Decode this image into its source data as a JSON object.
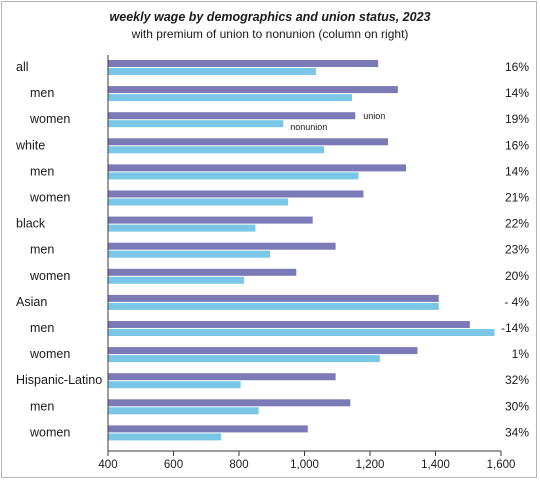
{
  "chart_data": {
    "type": "bar",
    "orientation": "horizontal",
    "title": "weekly wage by demographics and union status, 2023",
    "subtitle": "with premium of union to nonunion (column on right)",
    "categories": [
      "all",
      "men",
      "women",
      "white",
      "men",
      "women",
      "black",
      "men",
      "women",
      "Asian",
      "men",
      "women",
      "Hispanic-Latino",
      "men",
      "women"
    ],
    "category_indent": [
      false,
      true,
      true,
      false,
      true,
      true,
      false,
      true,
      true,
      false,
      true,
      true,
      false,
      true,
      true
    ],
    "series": [
      {
        "name": "union",
        "color": "#7c79b7",
        "values": [
          1225,
          1285,
          1155,
          1255,
          1310,
          1180,
          1025,
          1095,
          975,
          1410,
          1505,
          1345,
          1095,
          1140,
          1010
        ]
      },
      {
        "name": "nonunion",
        "color": "#79c6e6",
        "values": [
          1035,
          1145,
          935,
          1060,
          1165,
          950,
          850,
          895,
          815,
          1410,
          1580,
          1230,
          805,
          860,
          745
        ]
      }
    ],
    "premium": [
      "16%",
      "14%",
      "19%",
      "16%",
      "14%",
      "21%",
      "22%",
      "23%",
      "20%",
      "- 4%",
      "-14%",
      "1%",
      "32%",
      "30%",
      "34%"
    ],
    "series_annotations": {
      "union": "union",
      "nonunion": "nonunion",
      "annotated_category": 2
    },
    "xlim": [
      400,
      1600
    ],
    "xticks": [
      400,
      600,
      800,
      1000,
      1200,
      1400,
      1600
    ],
    "xtick_labels": [
      "400",
      "600",
      "800",
      "1,000",
      "1,200",
      "1,400",
      "1,600"
    ],
    "grid": false,
    "legend": "inline labels next to the women bars of the all group"
  }
}
